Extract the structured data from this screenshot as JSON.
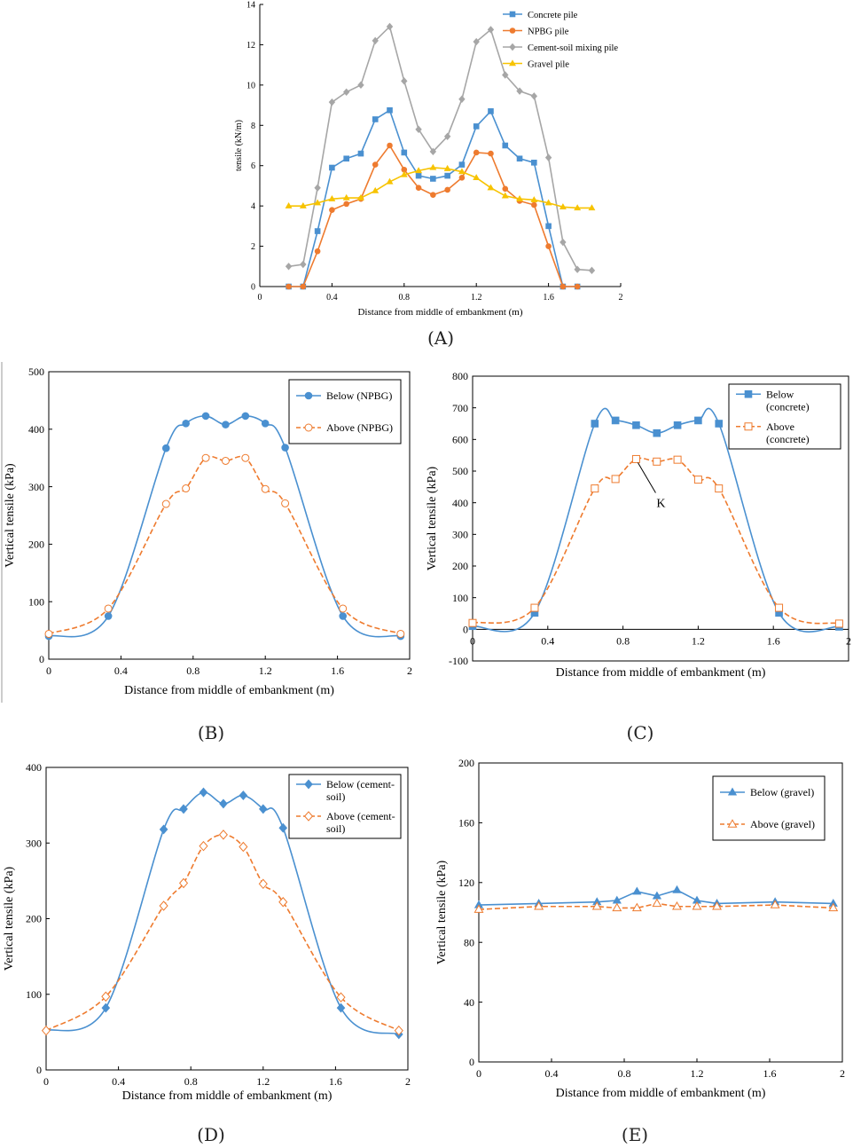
{
  "chart_data": [
    {
      "id": "A",
      "panel_label": "(A)",
      "type": "line",
      "xlabel": "Distance from middle of embankment (m)",
      "ylabel": "tensile (kN/m)",
      "xlim": [
        0,
        2
      ],
      "ylim": [
        0,
        14
      ],
      "xticks": [
        0,
        0.4,
        0.8,
        1.2,
        1.6,
        2
      ],
      "xtick_labels": [
        "0",
        "0.4",
        "0.8",
        "1.2",
        "1.6",
        "2"
      ],
      "yticks": [
        0,
        2,
        4,
        6,
        8,
        10,
        12,
        14
      ],
      "ytick_labels": [
        "0",
        "2",
        "4",
        "6",
        "8",
        "10",
        "12",
        "14"
      ],
      "legend_position": "top-right",
      "series": [
        {
          "name": "Concrete pile",
          "color": "#4a90d0",
          "marker": "square",
          "smooth": false,
          "dashed": false,
          "hollow": false,
          "x": [
            0.16,
            0.24,
            0.32,
            0.4,
            0.48,
            0.56,
            0.64,
            0.72,
            0.8,
            0.88,
            0.96,
            1.04,
            1.12,
            1.2,
            1.28,
            1.36,
            1.44,
            1.52,
            1.6,
            1.68,
            1.76
          ],
          "y": [
            0,
            0,
            2.75,
            5.9,
            6.35,
            6.6,
            8.3,
            8.75,
            6.65,
            5.5,
            5.35,
            5.5,
            6.05,
            7.95,
            8.7,
            7.0,
            6.35,
            6.15,
            3.0,
            0,
            0
          ]
        },
        {
          "name": "NPBG pile",
          "color": "#ee7b2f",
          "marker": "circle",
          "smooth": false,
          "dashed": false,
          "hollow": false,
          "x": [
            0.16,
            0.24,
            0.32,
            0.4,
            0.48,
            0.56,
            0.64,
            0.72,
            0.8,
            0.88,
            0.96,
            1.04,
            1.12,
            1.2,
            1.28,
            1.36,
            1.44,
            1.52,
            1.6,
            1.68,
            1.76
          ],
          "y": [
            0,
            0,
            1.75,
            3.8,
            4.1,
            4.35,
            6.05,
            7.0,
            5.8,
            4.9,
            4.55,
            4.8,
            5.4,
            6.65,
            6.6,
            4.85,
            4.25,
            4.05,
            2.0,
            0,
            0
          ]
        },
        {
          "name": "Cement-soil mixing pile",
          "color": "#a6a6a6",
          "marker": "diamond",
          "smooth": false,
          "dashed": false,
          "hollow": false,
          "x": [
            0.16,
            0.24,
            0.32,
            0.4,
            0.48,
            0.56,
            0.64,
            0.72,
            0.8,
            0.88,
            0.96,
            1.04,
            1.12,
            1.2,
            1.28,
            1.36,
            1.44,
            1.52,
            1.6,
            1.68,
            1.76,
            1.84
          ],
          "y": [
            1.0,
            1.1,
            4.9,
            9.15,
            9.65,
            10.0,
            12.2,
            12.9,
            10.2,
            7.8,
            6.7,
            7.45,
            9.3,
            12.15,
            12.75,
            10.5,
            9.7,
            9.45,
            6.4,
            2.2,
            0.85,
            0.8
          ]
        },
        {
          "name": "Gravel pile",
          "color": "#f7c300",
          "marker": "triangle",
          "smooth": false,
          "dashed": false,
          "hollow": false,
          "x": [
            0.16,
            0.24,
            0.32,
            0.4,
            0.48,
            0.56,
            0.64,
            0.72,
            0.8,
            0.88,
            0.96,
            1.04,
            1.12,
            1.2,
            1.28,
            1.36,
            1.44,
            1.52,
            1.6,
            1.68,
            1.76,
            1.84
          ],
          "y": [
            4.0,
            4.0,
            4.15,
            4.35,
            4.4,
            4.4,
            4.75,
            5.2,
            5.55,
            5.75,
            5.9,
            5.85,
            5.7,
            5.4,
            4.9,
            4.5,
            4.35,
            4.3,
            4.15,
            3.95,
            3.9,
            3.9
          ]
        }
      ]
    },
    {
      "id": "B",
      "panel_label": "(B)",
      "type": "line",
      "xlabel": "Distance from middle of embankment (m)",
      "ylabel": "Vertical tensile (kPa)",
      "xlim": [
        0,
        2
      ],
      "ylim": [
        0,
        500
      ],
      "xticks": [
        0,
        0.4,
        0.8,
        1.2,
        1.6,
        2
      ],
      "xtick_labels": [
        "0",
        "0.4",
        "0.8",
        "1.2",
        "1.6",
        "2"
      ],
      "yticks": [
        0,
        100,
        200,
        300,
        400,
        500
      ],
      "ytick_labels": [
        "0",
        "100",
        "200",
        "300",
        "400",
        "500"
      ],
      "legend_position": "top-right",
      "series": [
        {
          "name": "Below (NPBG)",
          "color": "#4a90d0",
          "marker": "circle",
          "smooth": true,
          "dashed": false,
          "hollow": false,
          "x": [
            0,
            0.33,
            0.65,
            0.76,
            0.87,
            0.98,
            1.09,
            1.2,
            1.31,
            1.63,
            1.95
          ],
          "y": [
            40,
            75,
            367,
            410,
            423,
            408,
            423,
            410,
            368,
            75,
            40
          ]
        },
        {
          "name": "Above (NPBG)",
          "color": "#ee7b2f",
          "marker": "circle",
          "smooth": true,
          "dashed": true,
          "hollow": true,
          "x": [
            0,
            0.33,
            0.65,
            0.76,
            0.87,
            0.98,
            1.09,
            1.2,
            1.31,
            1.63,
            1.95
          ],
          "y": [
            44,
            88,
            270,
            297,
            350,
            345,
            350,
            296,
            271,
            88,
            44
          ]
        }
      ]
    },
    {
      "id": "C",
      "panel_label": "(C)",
      "type": "line",
      "xlabel": "Distance from middle of embankment (m)",
      "ylabel": "Vertical tensile (kPa)",
      "xlim": [
        0,
        2
      ],
      "ylim": [
        -100,
        800
      ],
      "xticks": [
        0,
        0.4,
        0.8,
        1.2,
        1.6,
        2
      ],
      "xtick_labels": [
        "0",
        "0.4",
        "0.8",
        "1.2",
        "1.6",
        "2"
      ],
      "yticks": [
        -100,
        0,
        100,
        200,
        300,
        400,
        500,
        600,
        700,
        800
      ],
      "ytick_labels": [
        "-100",
        "0",
        "100",
        "200",
        "300",
        "400",
        "500",
        "600",
        "700",
        "800"
      ],
      "legend_position": "top-right",
      "annotation": "K",
      "series": [
        {
          "name": "Below (concrete)",
          "legend_lines": [
            "Below",
            "(concrete)"
          ],
          "color": "#4a90d0",
          "marker": "square",
          "smooth": true,
          "dashed": false,
          "hollow": false,
          "x": [
            0,
            0.33,
            0.65,
            0.76,
            0.87,
            0.98,
            1.09,
            1.2,
            1.31,
            1.63,
            1.95
          ],
          "y": [
            10,
            52,
            650,
            660,
            645,
            620,
            645,
            660,
            650,
            52,
            8
          ]
        },
        {
          "name": "Above (concrete)",
          "legend_lines": [
            "Above",
            "(concrete)"
          ],
          "color": "#ee7b2f",
          "marker": "square",
          "smooth": true,
          "dashed": true,
          "hollow": true,
          "x": [
            0,
            0.33,
            0.65,
            0.76,
            0.87,
            0.98,
            1.09,
            1.2,
            1.31,
            1.63,
            1.95
          ],
          "y": [
            20,
            68,
            445,
            475,
            538,
            530,
            536,
            473,
            445,
            68,
            18
          ]
        }
      ]
    },
    {
      "id": "D",
      "panel_label": "(D)",
      "type": "line",
      "xlabel": "Distance from middle of embankment (m)",
      "ylabel": "Vertical tensile (kPa)",
      "xlim": [
        0,
        2
      ],
      "ylim": [
        0,
        400
      ],
      "xticks": [
        0,
        0.4,
        0.8,
        1.2,
        1.6,
        2
      ],
      "xtick_labels": [
        "0",
        "0.4",
        "0.8",
        "1.2",
        "1.6",
        "2"
      ],
      "yticks": [
        0,
        100,
        200,
        300,
        400
      ],
      "ytick_labels": [
        "0",
        "100",
        "200",
        "300",
        "400"
      ],
      "legend_position": "top-right",
      "series": [
        {
          "name": "Below (cement-soil)",
          "legend_lines": [
            "Below (cement-",
            "soil)"
          ],
          "color": "#4a90d0",
          "marker": "diamond",
          "smooth": true,
          "dashed": false,
          "hollow": false,
          "x": [
            0,
            0.33,
            0.65,
            0.76,
            0.87,
            0.98,
            1.09,
            1.2,
            1.31,
            1.63,
            1.95
          ],
          "y": [
            52,
            82,
            318,
            345,
            367,
            352,
            363,
            345,
            320,
            82,
            47
          ]
        },
        {
          "name": "Above (cement-soil)",
          "legend_lines": [
            "Above (cement-",
            "soil)"
          ],
          "color": "#ee7b2f",
          "marker": "diamond",
          "smooth": true,
          "dashed": true,
          "hollow": true,
          "x": [
            0,
            0.33,
            0.65,
            0.76,
            0.87,
            0.98,
            1.09,
            1.2,
            1.31,
            1.63,
            1.95
          ],
          "y": [
            52,
            97,
            217,
            247,
            296,
            311,
            295,
            246,
            222,
            96,
            52
          ]
        }
      ]
    },
    {
      "id": "E",
      "panel_label": "(E)",
      "type": "line",
      "xlabel": "Distance from middle of embankment (m)",
      "ylabel": "Vertical tensile (kPa)",
      "xlim": [
        0,
        2
      ],
      "ylim": [
        0,
        200
      ],
      "xticks": [
        0,
        0.4,
        0.8,
        1.2,
        1.6,
        2
      ],
      "xtick_labels": [
        "0",
        "0.4",
        "0.8",
        "1.2",
        "1.6",
        "2"
      ],
      "yticks": [
        0,
        40,
        80,
        120,
        160,
        200
      ],
      "ytick_labels": [
        "0",
        "40",
        "80",
        "120",
        "160",
        "200"
      ],
      "legend_position": "top-right",
      "series": [
        {
          "name": "Below (gravel)",
          "color": "#4a90d0",
          "marker": "triangle",
          "smooth": false,
          "dashed": false,
          "hollow": false,
          "x": [
            0,
            0.33,
            0.65,
            0.76,
            0.87,
            0.98,
            1.09,
            1.2,
            1.31,
            1.63,
            1.95
          ],
          "y": [
            105,
            106,
            107,
            108,
            114,
            111,
            115,
            108,
            106,
            107,
            106
          ]
        },
        {
          "name": "Above (gravel)",
          "color": "#ee7b2f",
          "marker": "triangle",
          "smooth": false,
          "dashed": true,
          "hollow": true,
          "x": [
            0,
            0.33,
            0.65,
            0.76,
            0.87,
            0.98,
            1.09,
            1.2,
            1.31,
            1.63,
            1.95
          ],
          "y": [
            102,
            104,
            104,
            103,
            103,
            106,
            104,
            104,
            104,
            105,
            103
          ]
        }
      ]
    }
  ]
}
